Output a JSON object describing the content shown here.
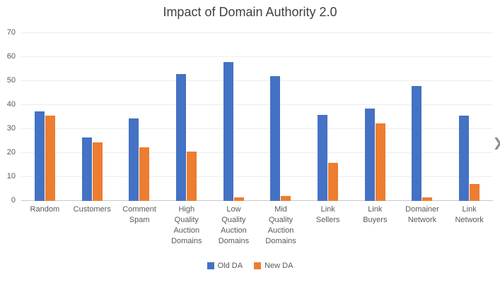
{
  "chart_data": {
    "type": "bar",
    "title": "Impact of Domain Authority 2.0",
    "categories": [
      "Random",
      "Customers",
      "Comment Spam",
      "High Quality Auction Domains",
      "Low Quality Auction Domains",
      "Mid Quality Auction Domains",
      "Link Sellers",
      "Link Buyers",
      "Domainer Network",
      "Link Network"
    ],
    "series": [
      {
        "name": "Old DA",
        "color": "#4472C4",
        "values": [
          37.5,
          26.5,
          34.5,
          53,
          58,
          52,
          36,
          38.5,
          48,
          35.5
        ]
      },
      {
        "name": "New DA",
        "color": "#ED7D31",
        "values": [
          35.5,
          24.5,
          22.5,
          20.5,
          1.5,
          2,
          16,
          32.5,
          1.5,
          7
        ]
      }
    ],
    "ylim": [
      0,
      70
    ],
    "ytick_step": 10,
    "grid": true,
    "legend_position": "bottom"
  },
  "icons": {
    "chevron_right": "❯"
  }
}
